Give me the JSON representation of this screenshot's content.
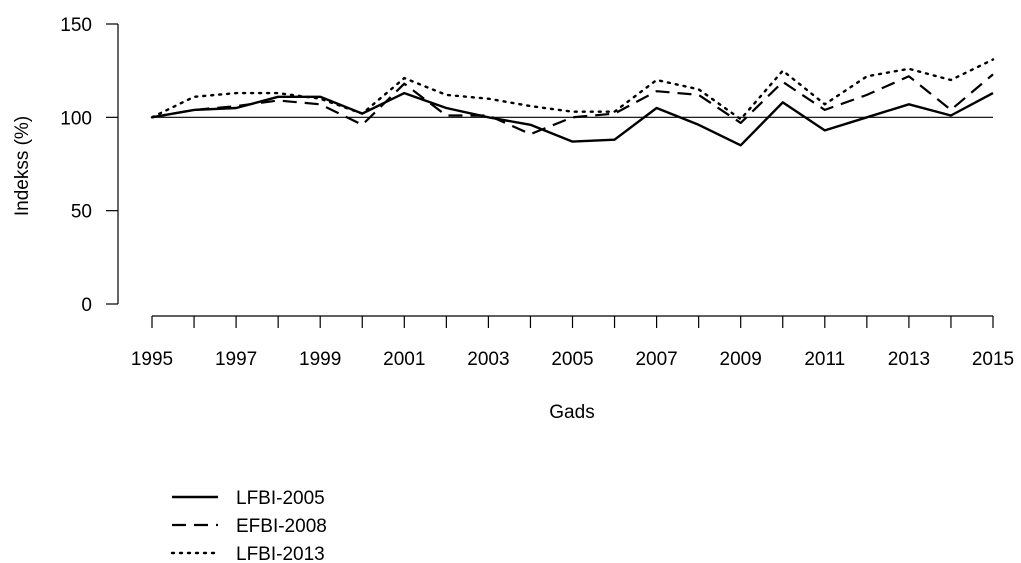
{
  "chart_data": {
    "type": "line",
    "title": "",
    "xlabel": "Gads",
    "ylabel": "Indekss (%)",
    "x": [
      1995,
      1996,
      1997,
      1998,
      1999,
      2000,
      2001,
      2002,
      2003,
      2004,
      2005,
      2006,
      2007,
      2008,
      2009,
      2010,
      2011,
      2012,
      2013,
      2014,
      2015
    ],
    "xticks": [
      "1995",
      "1997",
      "1999",
      "2001",
      "2003",
      "2005",
      "2007",
      "2009",
      "2011",
      "2013",
      "2015"
    ],
    "yticks": [
      "0",
      "50",
      "100",
      "150"
    ],
    "xlim": [
      1995,
      2015
    ],
    "ylim": [
      0,
      150
    ],
    "reference_line": 100,
    "grid": false,
    "legend_position": "bottom-left",
    "series": [
      {
        "name": "LFBI-2005",
        "dash": "solid",
        "values": [
          100,
          104,
          105,
          111,
          111,
          102,
          113,
          105,
          100,
          96,
          87,
          88,
          105,
          96,
          85,
          108,
          93,
          100,
          107,
          101,
          113
        ]
      },
      {
        "name": "EFBI-2008",
        "dash": "dashed",
        "values": [
          100,
          104,
          106,
          109,
          107,
          96,
          118,
          101,
          101,
          91,
          100,
          102,
          114,
          112,
          97,
          119,
          104,
          112,
          122,
          104,
          123
        ]
      },
      {
        "name": "LFBI-2013",
        "dash": "dotted",
        "values": [
          100,
          111,
          113,
          113,
          110,
          102,
          121,
          112,
          110,
          106,
          103,
          103,
          120,
          115,
          99,
          125,
          107,
          122,
          126,
          120,
          131
        ]
      }
    ]
  }
}
